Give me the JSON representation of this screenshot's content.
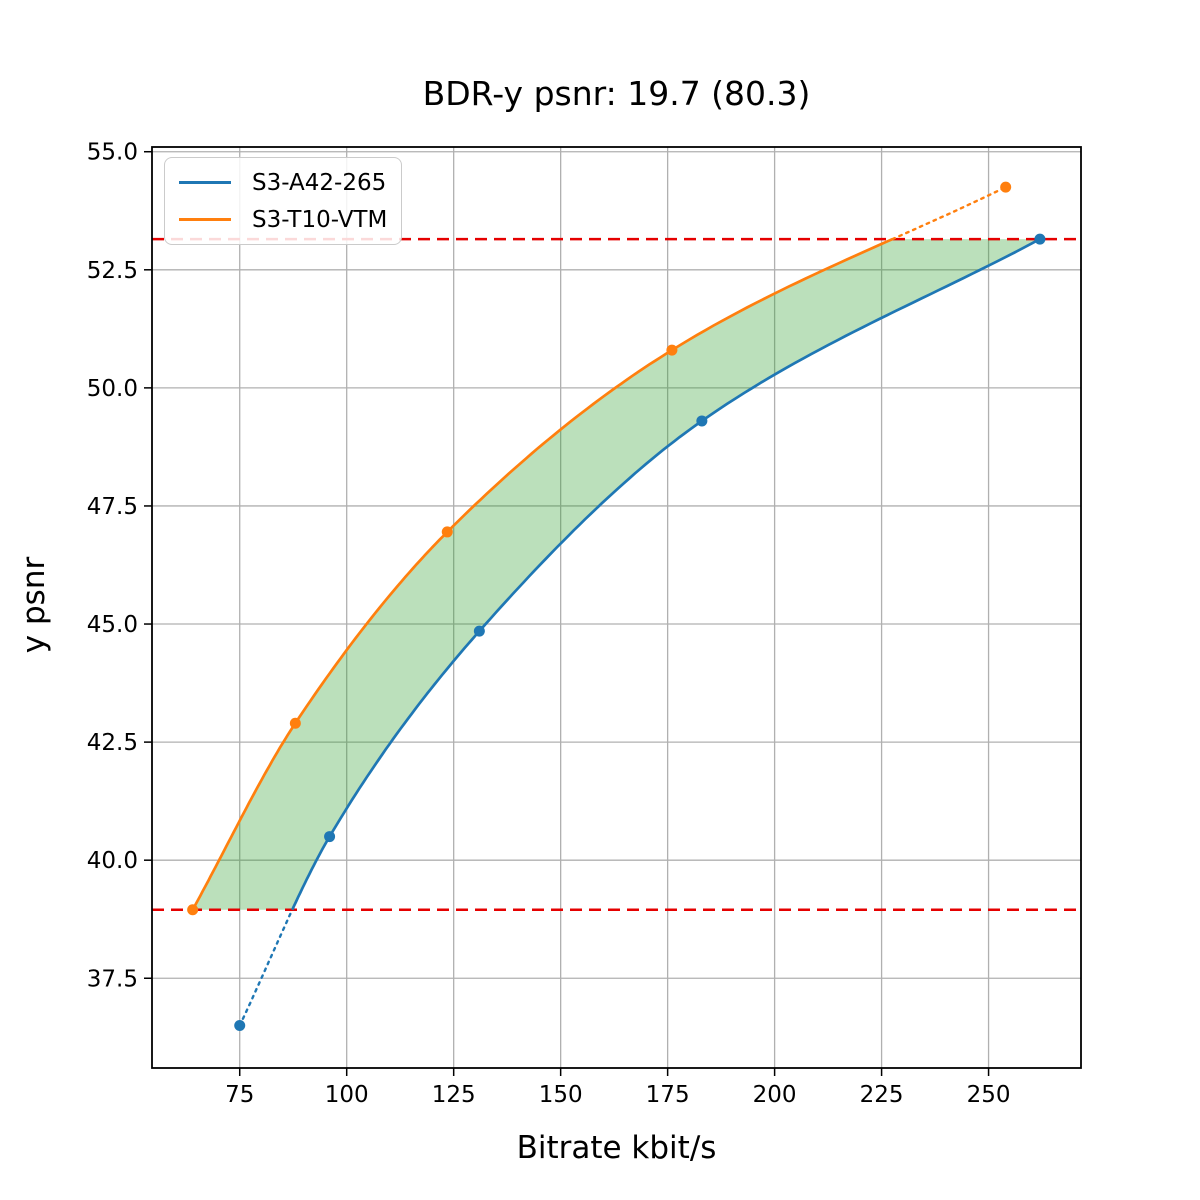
{
  "title": "BDR-y psnr: 19.7 (80.3)",
  "chart_data": {
    "type": "line",
    "title": "BDR-y psnr: 19.7 (80.3)",
    "xlabel": "Bitrate kbit/s",
    "ylabel": "y psnr",
    "xlim": [
      54.5,
      271.6
    ],
    "ylim": [
      35.6,
      55.1
    ],
    "xticks": [
      75,
      100,
      125,
      150,
      175,
      200,
      225,
      250
    ],
    "yticks": [
      37.5,
      40.0,
      42.5,
      45.0,
      47.5,
      50.0,
      52.5,
      55.0
    ],
    "grid": true,
    "grid_color": "#b0b0b0",
    "legend_position": "upper-left",
    "series": [
      {
        "name": "S3-A42-265",
        "color": "#1f77b4",
        "x": [
          75,
          96,
          131,
          183,
          262
        ],
        "y": [
          36.5,
          40.5,
          44.85,
          49.3,
          53.15
        ],
        "note": "solid within overlap range, dotted below lower red line"
      },
      {
        "name": "S3-T10-VTM",
        "color": "#ff7f0e",
        "x": [
          64,
          88,
          123.5,
          176,
          254
        ],
        "y": [
          38.95,
          42.9,
          46.95,
          50.8,
          54.25
        ],
        "note": "solid within overlap range, dotted above upper red line"
      }
    ],
    "hlines": [
      {
        "y": 38.95,
        "color": "#e50000",
        "style": "dashed"
      },
      {
        "y": 53.15,
        "color": "#e50000",
        "style": "dashed"
      }
    ],
    "shaded_region": {
      "color": "#2ca02c",
      "alpha": 0.32,
      "description": "area between the two rate-distortion curves clipped between the two red dashed lines"
    }
  }
}
